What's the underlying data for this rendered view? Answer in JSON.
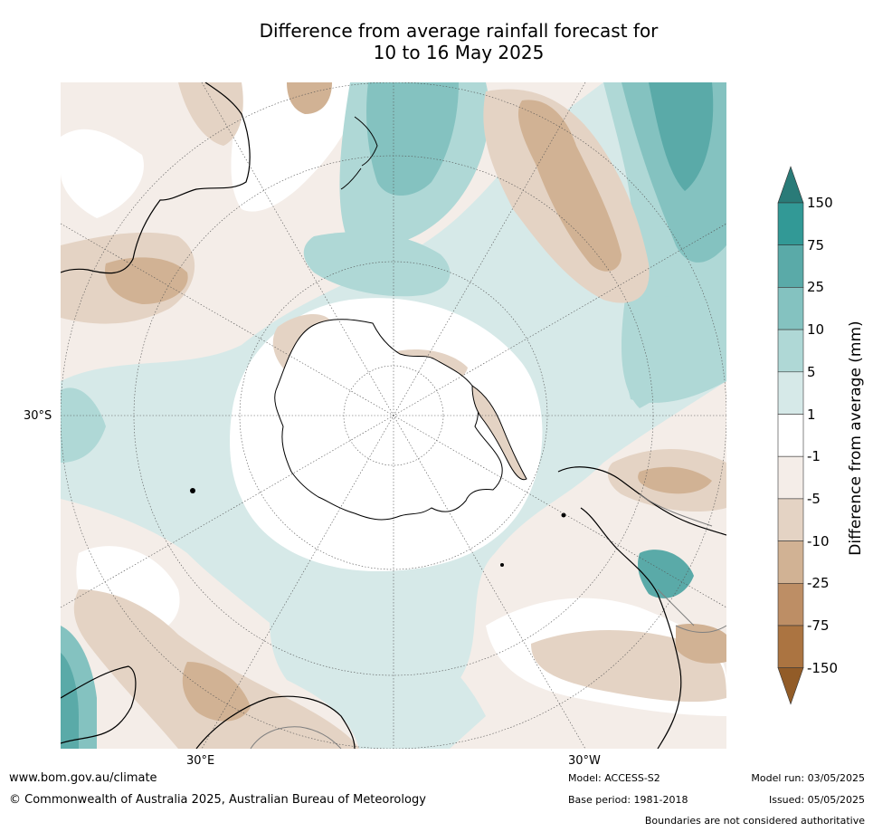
{
  "title": {
    "line1": "Difference from average rainfall forecast for",
    "line2": "10 to 16 May 2025"
  },
  "map": {
    "projection": "south polar stereographic",
    "lat_labels": {
      "left": "30°S",
      "bottom_left": "30°E",
      "bottom_right": "30°W"
    },
    "land_outline_color": "#000000",
    "boundaries_color": "#808080"
  },
  "colorbar": {
    "title": "Difference from average (mm)",
    "levels": [
      "150",
      "75",
      "25",
      "10",
      "5",
      "1",
      "-1",
      "-5",
      "-10",
      "-25",
      "-75",
      "-150"
    ],
    "colors": [
      {
        "range": ">150",
        "hex": "#2a7b78"
      },
      {
        "range": "75 to 150",
        "hex": "#329996"
      },
      {
        "range": "25 to 75",
        "hex": "#5aaaa8"
      },
      {
        "range": "10 to 25",
        "hex": "#84c2c0"
      },
      {
        "range": "5 to 10",
        "hex": "#afd8d6"
      },
      {
        "range": "1 to 5",
        "hex": "#d6e9e8"
      },
      {
        "range": "-1 to 1",
        "hex": "#ffffff"
      },
      {
        "range": "-5 to -1",
        "hex": "#f4ede8"
      },
      {
        "range": "-10 to -5",
        "hex": "#e4d3c4"
      },
      {
        "range": "-25 to -10",
        "hex": "#d1b294"
      },
      {
        "range": "-75 to -25",
        "hex": "#bd8e65"
      },
      {
        "range": "-150 to -75",
        "hex": "#ab7441"
      },
      {
        "range": "<-150",
        "hex": "#925c28"
      }
    ]
  },
  "footer": {
    "website": "www.bom.gov.au/climate",
    "copyright": "© Commonwealth of Australia 2025, Australian Bureau of Meteorology",
    "model": "Model: ACCESS-S2",
    "base_period": "Base period: 1981-2018",
    "model_run": "Model run: 03/05/2025",
    "issued": "Issued: 05/05/2025",
    "disclaimer": "Boundaries are not considered authoritative"
  }
}
